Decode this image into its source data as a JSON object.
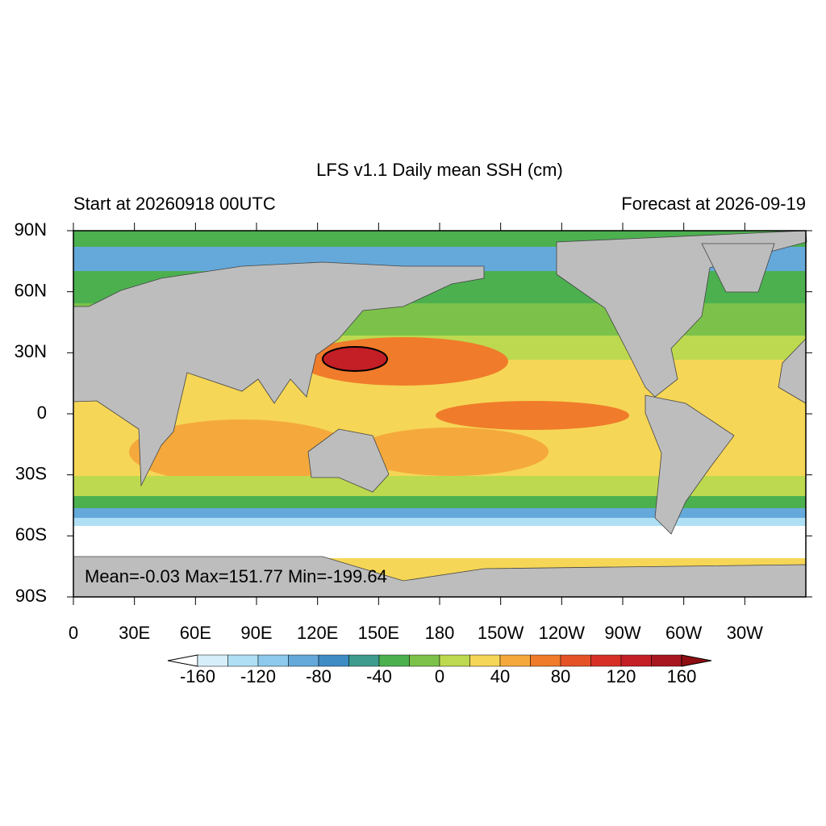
{
  "title": "LFS v1.1 Daily mean SSH (cm)",
  "left_subtitle": "Start at 20260918 00UTC",
  "right_subtitle": "Forecast at 2026-09-19",
  "y_axis_labels": [
    "90N",
    "60N",
    "30N",
    "0",
    "30S",
    "60S",
    "90S"
  ],
  "x_axis_labels": [
    "0",
    "30E",
    "60E",
    "90E",
    "120E",
    "150E",
    "180",
    "150W",
    "120W",
    "90W",
    "60W",
    "30W"
  ],
  "stats": "Mean=-0.03  Max=151.77  Min=-199.64",
  "colorbar": {
    "colors": [
      "#d6eef9",
      "#afdff4",
      "#8cc9ed",
      "#65a9db",
      "#3f8cc5",
      "#3d9c8e",
      "#4cb04f",
      "#7cc24a",
      "#bdd950",
      "#f6d656",
      "#f5a93c",
      "#f07b2b",
      "#e55228",
      "#d73127",
      "#c41e27",
      "#a8161f"
    ],
    "labels": [
      "-160",
      "-120",
      "-80",
      "-40",
      "0",
      "40",
      "80",
      "120",
      "160"
    ]
  }
}
